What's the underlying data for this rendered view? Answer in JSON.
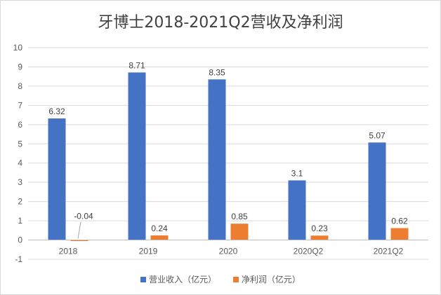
{
  "chart_data": {
    "type": "bar",
    "title": "牙博士2018-2021Q2营收及净利润",
    "categories": [
      "2018",
      "2019",
      "2020",
      "2020Q2",
      "2021Q2"
    ],
    "series": [
      {
        "name": "营业收入（亿元）",
        "values": [
          6.32,
          8.71,
          8.35,
          3.1,
          5.07
        ],
        "color": "#4472c4",
        "labels": [
          "6.32",
          "8.71",
          "8.35",
          "3.1",
          "5.07"
        ]
      },
      {
        "name": "净利润（亿元）",
        "values": [
          -0.04,
          0.24,
          0.85,
          0.23,
          0.62
        ],
        "color": "#ed7d31",
        "labels": [
          "-0.04",
          "0.24",
          "0.85",
          "0.23",
          "0.62"
        ]
      }
    ],
    "ylim": [
      -1,
      10
    ],
    "yticks": [
      "-1",
      "0",
      "1",
      "2",
      "3",
      "4",
      "5",
      "6",
      "7",
      "8",
      "9",
      "10"
    ],
    "grid": true,
    "legend_position": "bottom",
    "xlabel": "",
    "ylabel": ""
  }
}
